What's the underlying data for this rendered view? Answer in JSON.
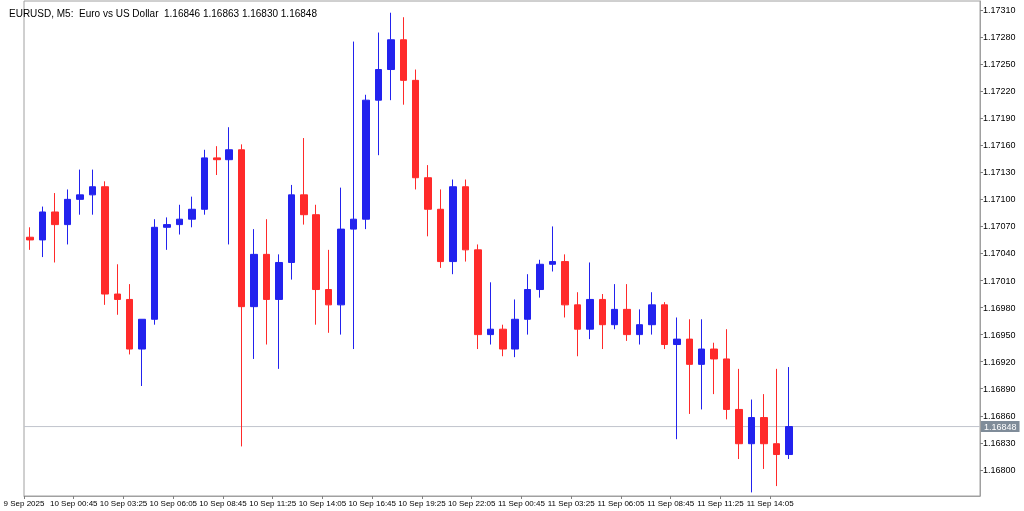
{
  "chart_data": {
    "type": "candlestick",
    "title": "EURUSD, M5:  Euro vs US Dollar  1.16846 1.16863 1.16830 1.16848",
    "x": [
      "2025-09-09T22:25",
      "2025-09-09T23:05",
      "2025-09-09T23:45",
      "2025-09-10T00:25",
      "2025-09-10T01:05",
      "2025-09-10T01:45",
      "2025-09-10T02:25",
      "2025-09-10T03:05",
      "2025-09-10T03:45",
      "2025-09-10T04:25",
      "2025-09-10T05:05",
      "2025-09-10T05:45",
      "2025-09-10T06:25",
      "2025-09-10T07:05",
      "2025-09-10T07:45",
      "2025-09-10T08:25",
      "2025-09-10T09:05",
      "2025-09-10T09:45",
      "2025-09-10T10:25",
      "2025-09-10T11:05",
      "2025-09-10T11:45",
      "2025-09-10T12:25",
      "2025-09-10T13:05",
      "2025-09-10T13:45",
      "2025-09-10T14:25",
      "2025-09-10T15:05",
      "2025-09-10T15:45",
      "2025-09-10T16:25",
      "2025-09-10T17:05",
      "2025-09-10T17:45",
      "2025-09-10T18:25",
      "2025-09-10T19:05",
      "2025-09-10T19:45",
      "2025-09-10T20:25",
      "2025-09-10T21:05",
      "2025-09-10T21:45",
      "2025-09-10T22:25",
      "2025-09-10T23:05",
      "2025-09-10T23:45",
      "2025-09-11T00:25",
      "2025-09-11T01:05",
      "2025-09-11T01:45",
      "2025-09-11T02:25",
      "2025-09-11T03:05",
      "2025-09-11T03:45",
      "2025-09-11T04:25",
      "2025-09-11T05:05",
      "2025-09-11T05:45",
      "2025-09-11T06:25",
      "2025-09-11T07:05",
      "2025-09-11T07:45",
      "2025-09-11T08:25",
      "2025-09-11T09:05",
      "2025-09-11T09:45",
      "2025-09-11T10:25",
      "2025-09-11T11:05",
      "2025-09-11T11:45",
      "2025-09-11T12:25",
      "2025-09-11T13:05",
      "2025-09-11T13:45",
      "2025-09-11T14:25",
      "2025-09-11T15:05"
    ],
    "ohlc": [
      [
        1.17058,
        1.17069,
        1.17044,
        1.17055
      ],
      [
        1.17055,
        1.17092,
        1.17036,
        1.17086
      ],
      [
        1.17086,
        1.17107,
        1.1703,
        1.17072
      ],
      [
        1.17072,
        1.17111,
        1.1705,
        1.171
      ],
      [
        1.171,
        1.17133,
        1.17083,
        1.17105
      ],
      [
        1.17105,
        1.17133,
        1.17083,
        1.17114
      ],
      [
        1.17114,
        1.1712,
        1.16983,
        1.16995
      ],
      [
        1.16995,
        1.17028,
        1.16972,
        1.16989
      ],
      [
        1.16989,
        1.17006,
        1.16928,
        1.16934
      ],
      [
        1.16934,
        1.16967,
        1.16893,
        1.16967
      ],
      [
        1.16967,
        1.17078,
        1.16961,
        1.17069
      ],
      [
        1.17069,
        1.1708,
        1.17044,
        1.17072
      ],
      [
        1.17072,
        1.17094,
        1.17061,
        1.17078
      ],
      [
        1.17078,
        1.17103,
        1.17069,
        1.17089
      ],
      [
        1.17089,
        1.17155,
        1.17083,
        1.17146
      ],
      [
        1.17146,
        1.17159,
        1.17127,
        1.17144
      ],
      [
        1.17144,
        1.1718,
        1.1705,
        1.17155
      ],
      [
        1.17155,
        1.17161,
        1.16826,
        1.16981
      ],
      [
        1.16981,
        1.17067,
        1.16923,
        1.17039
      ],
      [
        1.17039,
        1.17078,
        1.16939,
        1.16989
      ],
      [
        1.16989,
        1.17039,
        1.16912,
        1.1703
      ],
      [
        1.1703,
        1.17116,
        1.17011,
        1.17105
      ],
      [
        1.17105,
        1.17168,
        1.17072,
        1.17083
      ],
      [
        1.17083,
        1.17094,
        1.16961,
        1.17
      ],
      [
        1.17,
        1.17044,
        1.16952,
        1.16983
      ],
      [
        1.16983,
        1.17113,
        1.1695,
        1.17067
      ],
      [
        1.17067,
        1.17275,
        1.16934,
        1.17078
      ],
      [
        1.17078,
        1.17216,
        1.17067,
        1.1721
      ],
      [
        1.1721,
        1.17285,
        1.17149,
        1.17244
      ],
      [
        1.17244,
        1.17307,
        1.1721,
        1.17277
      ],
      [
        1.17277,
        1.17302,
        1.17205,
        1.17232
      ],
      [
        1.17232,
        1.17244,
        1.17111,
        1.17124
      ],
      [
        1.17124,
        1.17138,
        1.17059,
        1.17089
      ],
      [
        1.17089,
        1.17111,
        1.17024,
        1.17031
      ],
      [
        1.17031,
        1.17122,
        1.17017,
        1.17114
      ],
      [
        1.17114,
        1.17122,
        1.17031,
        1.17044
      ],
      [
        1.17044,
        1.1705,
        1.16934,
        1.1695
      ],
      [
        1.1695,
        1.17008,
        1.16939,
        1.16956
      ],
      [
        1.16956,
        1.16961,
        1.16926,
        1.16934
      ],
      [
        1.16934,
        1.16989,
        1.16925,
        1.16967
      ],
      [
        1.16967,
        1.17017,
        1.1695,
        1.17
      ],
      [
        1.17,
        1.17033,
        1.16991,
        1.17028
      ],
      [
        1.17028,
        1.1707,
        1.1702,
        1.17031
      ],
      [
        1.17031,
        1.17039,
        1.16969,
        1.16983
      ],
      [
        1.16983,
        1.16997,
        1.16926,
        1.16956
      ],
      [
        1.16956,
        1.1703,
        1.16945,
        1.16989
      ],
      [
        1.16989,
        1.16995,
        1.16934,
        1.16961
      ],
      [
        1.16961,
        1.17006,
        1.16956,
        1.16978
      ],
      [
        1.16978,
        1.17006,
        1.16943,
        1.1695
      ],
      [
        1.1695,
        1.16978,
        1.16939,
        1.16961
      ],
      [
        1.16961,
        1.16997,
        1.1695,
        1.16983
      ],
      [
        1.16983,
        1.16986,
        1.16934,
        1.16939
      ],
      [
        1.16939,
        1.16969,
        1.16834,
        1.16945
      ],
      [
        1.16945,
        1.16967,
        1.16862,
        1.16917
      ],
      [
        1.16917,
        1.16967,
        1.16867,
        1.16934
      ],
      [
        1.16934,
        1.16941,
        1.16884,
        1.16923
      ],
      [
        1.16923,
        1.16956,
        1.16856,
        1.16867
      ],
      [
        1.16867,
        1.16912,
        1.16812,
        1.16829
      ],
      [
        1.16829,
        1.16878,
        1.16775,
        1.16858
      ],
      [
        1.16858,
        1.16884,
        1.16801,
        1.16829
      ],
      [
        1.16829,
        1.16912,
        1.16782,
        1.16817
      ],
      [
        1.16817,
        1.16914,
        1.16812,
        1.16848
      ]
    ],
    "xlim": [
      "2025-09-09T22:05",
      "2025-09-12T01:20"
    ],
    "xticks": [
      {
        "value": "2025-09-09T22:05",
        "label": "9 Sep 2025"
      },
      {
        "value": "2025-09-10T00:45",
        "label": "10 Sep 00:45"
      },
      {
        "value": "2025-09-10T03:25",
        "label": "10 Sep 03:25"
      },
      {
        "value": "2025-09-10T06:05",
        "label": "10 Sep 06:05"
      },
      {
        "value": "2025-09-10T08:45",
        "label": "10 Sep 08:45"
      },
      {
        "value": "2025-09-10T11:25",
        "label": "10 Sep 11:25"
      },
      {
        "value": "2025-09-10T14:05",
        "label": "10 Sep 14:05"
      },
      {
        "value": "2025-09-10T16:45",
        "label": "10 Sep 16:45"
      },
      {
        "value": "2025-09-10T19:25",
        "label": "10 Sep 19:25"
      },
      {
        "value": "2025-09-10T22:05",
        "label": "10 Sep 22:05"
      },
      {
        "value": "2025-09-11T00:45",
        "label": "11 Sep 00:45"
      },
      {
        "value": "2025-09-11T03:25",
        "label": "11 Sep 03:25"
      },
      {
        "value": "2025-09-11T06:05",
        "label": "11 Sep 06:05"
      },
      {
        "value": "2025-09-11T08:45",
        "label": "11 Sep 08:45"
      },
      {
        "value": "2025-09-11T11:25",
        "label": "11 Sep 11:25"
      },
      {
        "value": "2025-09-11T14:05",
        "label": "11 Sep 14:05"
      }
    ],
    "ylim": [
      1.16771,
      1.1732
    ],
    "yticks": [
      {
        "value": 1.168,
        "label": "1.16800"
      },
      {
        "value": 1.1683,
        "label": "1.16830"
      },
      {
        "value": 1.1686,
        "label": "1.16860"
      },
      {
        "value": 1.1689,
        "label": "1.16890"
      },
      {
        "value": 1.1692,
        "label": "1.16920"
      },
      {
        "value": 1.1695,
        "label": "1.16950"
      },
      {
        "value": 1.1698,
        "label": "1.16980"
      },
      {
        "value": 1.1701,
        "label": "1.17010"
      },
      {
        "value": 1.1704,
        "label": "1.17040"
      },
      {
        "value": 1.1707,
        "label": "1.17070"
      },
      {
        "value": 1.171,
        "label": "1.17100"
      },
      {
        "value": 1.1713,
        "label": "1.17130"
      },
      {
        "value": 1.1716,
        "label": "1.17160"
      },
      {
        "value": 1.1719,
        "label": "1.17190"
      },
      {
        "value": 1.1722,
        "label": "1.17220"
      },
      {
        "value": 1.1725,
        "label": "1.17250"
      },
      {
        "value": 1.1728,
        "label": "1.17280"
      },
      {
        "value": 1.1731,
        "label": "1.17310"
      }
    ],
    "ref_lines": [
      {
        "axis": "y",
        "value": 1.16848,
        "label": "1.16848",
        "color": "#c0c4cc"
      }
    ]
  }
}
